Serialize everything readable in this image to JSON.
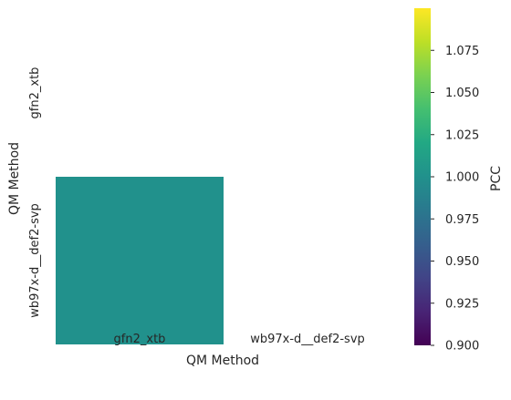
{
  "chart_data": {
    "type": "heatmap",
    "title": "",
    "xlabel": "QM Method",
    "ylabel": "QM Method",
    "x_categories": [
      "gfn2_xtb",
      "wb97x-d__def2-svp"
    ],
    "y_categories": [
      "gfn2_xtb",
      "wb97x-d__def2-svp"
    ],
    "cells": [
      {
        "row": 1,
        "col": 0,
        "value": 1.0
      }
    ],
    "masked_cells": "upper triangle and diagonal except (wb97x-d__def2-svp, gfn2_xtb)",
    "colormap": "viridis",
    "colorbar": {
      "label": "PCC",
      "range": [
        0.9,
        1.1
      ],
      "ticks": [
        "0.900",
        "0.925",
        "0.950",
        "0.975",
        "1.000",
        "1.025",
        "1.050",
        "1.075"
      ]
    },
    "cell_color": "#21918c"
  }
}
